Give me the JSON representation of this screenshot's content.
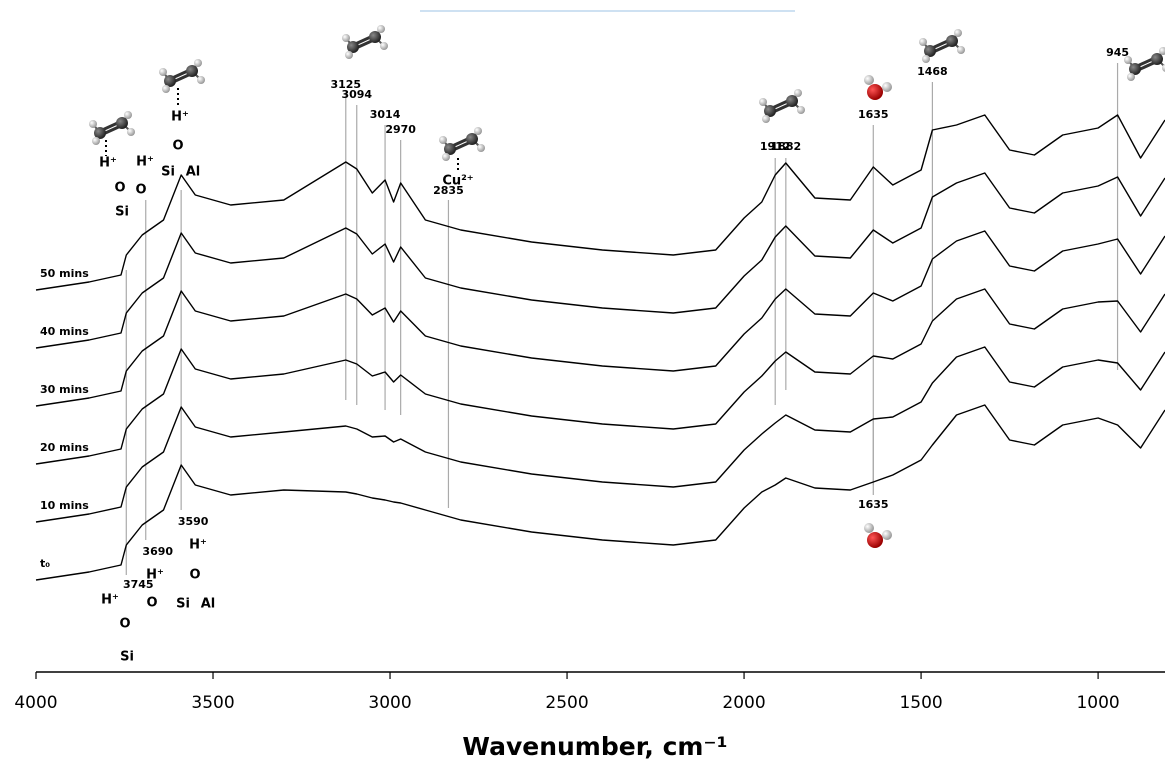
{
  "chart_data": {
    "type": "line",
    "x_label": "Wavenumber, cm⁻¹",
    "x": [
      4000,
      3850,
      3760,
      3745,
      3700,
      3640,
      3590,
      3550,
      3450,
      3300,
      3125,
      3094,
      3050,
      3014,
      2990,
      2970,
      2900,
      2800,
      2600,
      2400,
      2200,
      2080,
      2000,
      1950,
      1912,
      1882,
      1800,
      1700,
      1635,
      1580,
      1500,
      1468,
      1400,
      1320,
      1250,
      1180,
      1100,
      1000,
      945,
      880,
      811
    ],
    "xlim": [
      4000,
      811
    ],
    "xticks": [
      4000,
      3500,
      3000,
      2500,
      2000,
      1500,
      1000
    ],
    "ylim": [
      0,
      66.2
    ],
    "color": "#000000",
    "series": [
      {
        "name": "t₀",
        "values": [
          9.2,
          10.0,
          10.7,
          12.7,
          14.7,
          16.2,
          20.7,
          18.7,
          17.7,
          18.2,
          18.0,
          17.8,
          17.4,
          17.2,
          17.0,
          16.9,
          16.2,
          15.2,
          14.0,
          13.2,
          12.7,
          13.2,
          16.4,
          18.0,
          18.7,
          19.4,
          18.4,
          18.2,
          19.0,
          19.7,
          21.2,
          22.7,
          25.7,
          26.7,
          23.2,
          22.7,
          24.7,
          25.4,
          24.7,
          22.4,
          26.2
        ]
      },
      {
        "name": "10 mins",
        "values": [
          15.0,
          15.8,
          16.5,
          18.5,
          20.5,
          22.0,
          26.5,
          24.5,
          23.5,
          24.0,
          24.6,
          24.3,
          23.5,
          23.6,
          23.0,
          23.3,
          22.0,
          21.0,
          19.8,
          19.0,
          18.5,
          19.0,
          22.2,
          23.8,
          24.9,
          25.7,
          24.2,
          24.0,
          25.3,
          25.5,
          27.0,
          28.9,
          31.5,
          32.5,
          29.0,
          28.5,
          30.5,
          31.2,
          30.9,
          28.2,
          32.0
        ]
      },
      {
        "name": "20 mins",
        "values": [
          20.8,
          21.6,
          22.3,
          24.3,
          26.3,
          27.8,
          32.3,
          30.3,
          29.3,
          29.8,
          31.2,
          30.8,
          29.6,
          30.0,
          29.0,
          29.7,
          27.8,
          26.8,
          25.6,
          24.8,
          24.3,
          24.8,
          28.0,
          29.6,
          31.1,
          32.0,
          30.0,
          29.8,
          31.6,
          31.3,
          32.8,
          35.1,
          37.3,
          38.3,
          34.8,
          34.3,
          36.3,
          37.0,
          37.1,
          34.0,
          37.8
        ]
      },
      {
        "name": "30 mins",
        "values": [
          26.6,
          27.4,
          28.1,
          30.1,
          32.1,
          33.6,
          38.1,
          36.1,
          35.1,
          35.6,
          37.8,
          37.3,
          35.7,
          36.4,
          35.0,
          36.1,
          33.6,
          32.6,
          31.4,
          30.6,
          30.1,
          30.6,
          33.8,
          35.4,
          37.3,
          38.3,
          35.8,
          35.6,
          37.9,
          37.1,
          38.6,
          41.3,
          43.1,
          44.1,
          40.6,
          40.1,
          42.1,
          42.8,
          43.3,
          39.8,
          43.6
        ]
      },
      {
        "name": "40 mins",
        "values": [
          32.4,
          33.2,
          33.9,
          35.9,
          37.9,
          39.4,
          43.9,
          41.9,
          40.9,
          41.4,
          44.4,
          43.8,
          41.8,
          42.8,
          41.0,
          42.5,
          39.4,
          38.4,
          37.2,
          36.4,
          35.9,
          36.4,
          39.6,
          41.2,
          43.5,
          44.6,
          41.6,
          41.4,
          44.2,
          42.9,
          44.4,
          47.5,
          48.9,
          49.9,
          46.4,
          45.9,
          47.9,
          48.6,
          49.5,
          45.6,
          49.4
        ]
      },
      {
        "name": "50 mins",
        "values": [
          38.2,
          39.0,
          39.7,
          41.7,
          43.7,
          45.2,
          49.7,
          47.7,
          46.7,
          47.2,
          51.0,
          50.3,
          47.9,
          49.2,
          47.0,
          48.9,
          45.2,
          44.2,
          43.0,
          42.2,
          41.7,
          42.2,
          45.4,
          47.0,
          49.7,
          50.9,
          47.4,
          47.2,
          50.5,
          48.7,
          50.2,
          54.2,
          54.7,
          55.7,
          52.2,
          51.7,
          53.7,
          54.4,
          55.7,
          51.4,
          55.2
        ]
      }
    ],
    "peak_markers": [
      {
        "value": 3125,
        "label": "3125"
      },
      {
        "value": 3094,
        "label": "3094"
      },
      {
        "value": 3014,
        "label": "3014"
      },
      {
        "value": 2970,
        "label": "2970"
      },
      {
        "value": 2835,
        "label": "2835"
      },
      {
        "value": 1912,
        "label": "1912"
      },
      {
        "value": 1882,
        "label": "1882"
      },
      {
        "value": 1635,
        "label": "1635"
      },
      {
        "value": 1468,
        "label": "1468"
      },
      {
        "value": 945,
        "label": "945"
      },
      {
        "value": 3745,
        "label": "3745"
      },
      {
        "value": 3690,
        "label": "3690"
      },
      {
        "value": 3590,
        "label": "3590"
      },
      {
        "value": 1635,
        "label": "1635"
      }
    ],
    "structure_labels": [
      "H⁺",
      "O",
      "Si",
      "H⁺",
      "O",
      "H⁺",
      "O",
      "Si",
      "Al",
      "Cu²⁺",
      "H⁺",
      "O",
      "Si",
      "H⁺",
      "O",
      "H⁺",
      "O",
      "Si",
      "Al"
    ]
  }
}
